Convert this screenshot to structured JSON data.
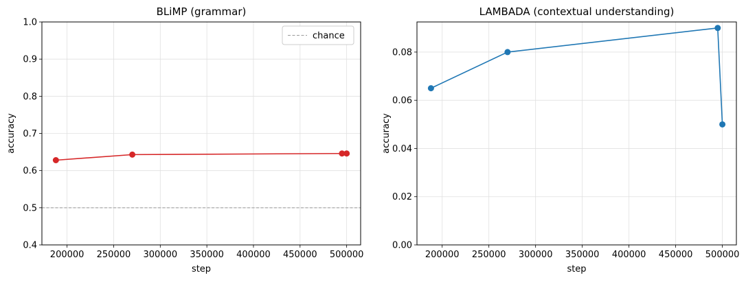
{
  "chart_data": [
    {
      "type": "line",
      "title": "BLiMP (grammar)",
      "xlabel": "step",
      "ylabel": "accuracy",
      "xlim": [
        173000,
        515000
      ],
      "ylim": [
        0.4,
        1.0
      ],
      "xticks": [
        200000,
        250000,
        300000,
        350000,
        400000,
        450000,
        500000
      ],
      "xtick_labels": [
        "200000",
        "250000",
        "300000",
        "350000",
        "400000",
        "450000",
        "500000"
      ],
      "yticks": [
        0.4,
        0.5,
        0.6,
        0.7,
        0.8,
        0.9,
        1.0
      ],
      "ytick_labels": [
        "0.4",
        "0.5",
        "0.6",
        "0.7",
        "0.8",
        "0.9",
        "1.0"
      ],
      "grid": true,
      "series": [
        {
          "color": "#d62728",
          "marker": "circle",
          "x": [
            188000,
            270000,
            495000,
            500000
          ],
          "y": [
            0.628,
            0.643,
            0.646,
            0.646
          ]
        }
      ],
      "reference_lines": [
        {
          "name": "chance",
          "y": 0.5,
          "color": "#999999",
          "style": "dashed"
        }
      ],
      "legend": {
        "placement": "top-right",
        "entries": [
          "chance"
        ]
      }
    },
    {
      "type": "line",
      "title": "LAMBADA (contextual understanding)",
      "xlabel": "step",
      "ylabel": "accuracy",
      "xlim": [
        173000,
        515000
      ],
      "ylim": [
        0.0,
        0.0925
      ],
      "xticks": [
        200000,
        250000,
        300000,
        350000,
        400000,
        450000,
        500000
      ],
      "xtick_labels": [
        "200000",
        "250000",
        "300000",
        "350000",
        "400000",
        "450000",
        "500000"
      ],
      "yticks": [
        0.0,
        0.02,
        0.04,
        0.06,
        0.08
      ],
      "ytick_labels": [
        "0.00",
        "0.02",
        "0.04",
        "0.06",
        "0.08"
      ],
      "grid": true,
      "series": [
        {
          "color": "#1f77b4",
          "marker": "circle",
          "x": [
            188000,
            270000,
            495000,
            500000
          ],
          "y": [
            0.065,
            0.08,
            0.09,
            0.05
          ]
        }
      ]
    }
  ]
}
